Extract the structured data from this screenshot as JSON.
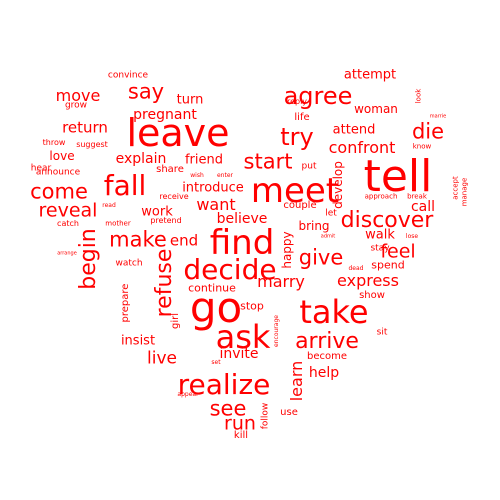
{
  "color": "#ff0000",
  "background": "#ffffff",
  "shape": "heart",
  "words": [
    {
      "text": "tell",
      "weight": 100
    },
    {
      "text": "go",
      "weight": 95
    },
    {
      "text": "leave",
      "weight": 92
    },
    {
      "text": "meet",
      "weight": 88
    },
    {
      "text": "find",
      "weight": 86
    },
    {
      "text": "ask",
      "weight": 84
    },
    {
      "text": "take",
      "weight": 82
    },
    {
      "text": "decide",
      "weight": 78
    },
    {
      "text": "realize",
      "weight": 76
    },
    {
      "text": "fall",
      "weight": 74
    },
    {
      "text": "try",
      "weight": 62
    },
    {
      "text": "agree",
      "weight": 62
    },
    {
      "text": "discover",
      "weight": 58
    },
    {
      "text": "begin",
      "weight": 58
    },
    {
      "text": "arrive",
      "weight": 56
    },
    {
      "text": "refuse",
      "weight": 56
    },
    {
      "text": "start",
      "weight": 55
    },
    {
      "text": "come",
      "weight": 55
    },
    {
      "text": "make",
      "weight": 54
    },
    {
      "text": "give",
      "weight": 54
    },
    {
      "text": "die",
      "weight": 52
    },
    {
      "text": "reveal",
      "weight": 50
    },
    {
      "text": "say",
      "weight": 50
    },
    {
      "text": "see",
      "weight": 50
    },
    {
      "text": "run",
      "weight": 50
    },
    {
      "text": "feel",
      "weight": 48
    },
    {
      "text": "confront",
      "weight": 44
    },
    {
      "text": "express",
      "weight": 40
    },
    {
      "text": "live",
      "weight": 40
    },
    {
      "text": "marry",
      "weight": 38
    },
    {
      "text": "want",
      "weight": 38
    },
    {
      "text": "learn",
      "weight": 38
    },
    {
      "text": "move",
      "weight": 36
    },
    {
      "text": "return",
      "weight": 34
    },
    {
      "text": "end",
      "weight": 34
    },
    {
      "text": "explain",
      "weight": 32
    },
    {
      "text": "call",
      "weight": 32
    },
    {
      "text": "pregnant",
      "weight": 32
    },
    {
      "text": "invite",
      "weight": 32
    },
    {
      "text": "believe",
      "weight": 32
    },
    {
      "text": "help",
      "weight": 32
    },
    {
      "text": "insist",
      "weight": 30
    },
    {
      "text": "work",
      "weight": 30
    },
    {
      "text": "attend",
      "weight": 30
    },
    {
      "text": "friend",
      "weight": 30
    },
    {
      "text": "introduce",
      "weight": 30
    },
    {
      "text": "walk",
      "weight": 30
    },
    {
      "text": "turn",
      "weight": 28
    },
    {
      "text": "attempt",
      "weight": 28
    },
    {
      "text": "love",
      "weight": 26
    },
    {
      "text": "woman",
      "weight": 26
    },
    {
      "text": "develop",
      "weight": 26
    },
    {
      "text": "happy",
      "weight": 26
    },
    {
      "text": "bring",
      "weight": 26
    },
    {
      "text": "continue",
      "weight": 24
    },
    {
      "text": "spend",
      "weight": 24
    },
    {
      "text": "stop",
      "weight": 24
    },
    {
      "text": "show",
      "weight": 22
    },
    {
      "text": "kill",
      "weight": 22
    },
    {
      "text": "become",
      "weight": 22
    },
    {
      "text": "life",
      "weight": 22
    },
    {
      "text": "prepare",
      "weight": 22
    },
    {
      "text": "girl",
      "weight": 22
    },
    {
      "text": "share",
      "weight": 22
    },
    {
      "text": "couple",
      "weight": 20
    },
    {
      "text": "use",
      "weight": 20
    },
    {
      "text": "follow",
      "weight": 20
    },
    {
      "text": "sit",
      "weight": 20
    },
    {
      "text": "put",
      "weight": 18
    },
    {
      "text": "let",
      "weight": 18
    },
    {
      "text": "hear",
      "weight": 18
    },
    {
      "text": "stay",
      "weight": 18
    },
    {
      "text": "watch",
      "weight": 18
    },
    {
      "text": "grow",
      "weight": 18
    },
    {
      "text": "convince",
      "weight": 18
    },
    {
      "text": "announce",
      "weight": 18
    },
    {
      "text": "reply",
      "weight": 16
    },
    {
      "text": "throw",
      "weight": 16
    },
    {
      "text": "suggest",
      "weight": 16
    },
    {
      "text": "pretend",
      "weight": 16
    },
    {
      "text": "receive",
      "weight": 16
    },
    {
      "text": "catch",
      "weight": 16
    },
    {
      "text": "mother",
      "weight": 14
    },
    {
      "text": "accept",
      "weight": 14
    },
    {
      "text": "manage",
      "weight": 14
    },
    {
      "text": "break",
      "weight": 14
    },
    {
      "text": "approach",
      "weight": 14
    },
    {
      "text": "know",
      "weight": 14
    },
    {
      "text": "look",
      "weight": 14
    },
    {
      "text": "lose",
      "weight": 12
    },
    {
      "text": "dead",
      "weight": 12
    },
    {
      "text": "set",
      "weight": 12
    },
    {
      "text": "appear",
      "weight": 12
    },
    {
      "text": "encourage",
      "weight": 12
    },
    {
      "text": "wish",
      "weight": 12
    },
    {
      "text": "enter",
      "weight": 12
    },
    {
      "text": "read",
      "weight": 12
    },
    {
      "text": "admit",
      "weight": 10
    },
    {
      "text": "arrange",
      "weight": 10
    },
    {
      "text": "marrie",
      "weight": 10
    }
  ]
}
